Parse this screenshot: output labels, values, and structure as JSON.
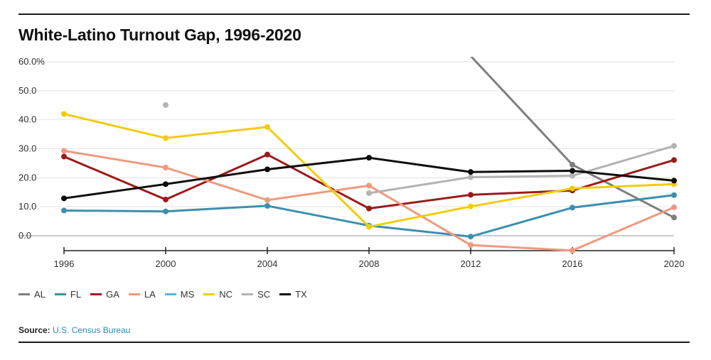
{
  "title": "White-Latino Turnout Gap, 1996-2020",
  "source": {
    "label": "Source:",
    "text": "U.S. Census Bureau"
  },
  "chart_data": {
    "type": "line",
    "title": "White-Latino Turnout Gap, 1996-2020",
    "x": [
      1996,
      2000,
      2004,
      2008,
      2012,
      2016,
      2020
    ],
    "x_tick_labels": [
      "1996",
      "2000",
      "2004",
      "2008",
      "2012",
      "2016",
      "2020"
    ],
    "y_tick_labels": [
      "0.0",
      "10.0",
      "20.0",
      "30.0",
      "40.0",
      "50.0",
      "60.0%"
    ],
    "y_ticks": [
      0,
      10,
      20,
      30,
      40,
      50,
      60
    ],
    "ylim": [
      -5,
      60
    ],
    "grid": "horizontal",
    "legend_placement": "bottom-left",
    "series": [
      {
        "name": "AL",
        "color": "#7f7f7f",
        "values": [
          null,
          null,
          null,
          null,
          62,
          24.5,
          6.3
        ]
      },
      {
        "name": "FL",
        "color": "#3d8fae",
        "values": [
          8.7,
          8.4,
          10.3,
          3.5,
          -0.3,
          9.7,
          14.0
        ]
      },
      {
        "name": "GA",
        "color": "#9b1b1b",
        "values": [
          27.3,
          12.5,
          28.0,
          9.4,
          14.1,
          15.6,
          26.1
        ]
      },
      {
        "name": "LA",
        "color": "#ee9a7e",
        "values": [
          29.3,
          23.5,
          12.3,
          17.3,
          -3.2,
          -5.1,
          9.8
        ]
      },
      {
        "name": "MS",
        "color": "#5cb3d6",
        "values": [
          null,
          null,
          null,
          null,
          null,
          null,
          null
        ]
      },
      {
        "name": "NC",
        "color": "#f2cc0c",
        "values": [
          42.0,
          33.7,
          37.5,
          3.1,
          10.1,
          16.3,
          17.8
        ]
      },
      {
        "name": "SC",
        "color": "#b3b3b3",
        "values": [
          null,
          45.1,
          null,
          14.7,
          20.2,
          20.7,
          31.0
        ]
      },
      {
        "name": "TX",
        "color": "#0d0d0d",
        "values": [
          12.9,
          17.8,
          22.9,
          26.9,
          22.0,
          22.4,
          19.0
        ]
      }
    ]
  }
}
